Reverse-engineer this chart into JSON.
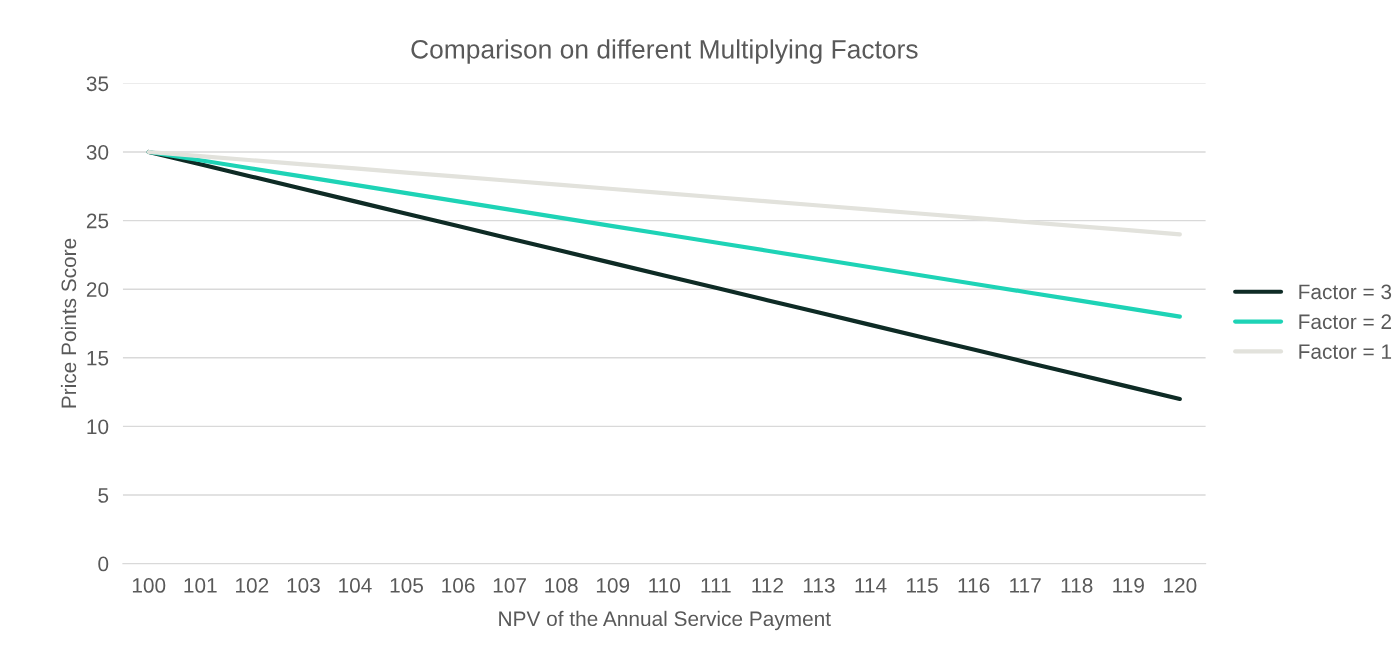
{
  "chart_data": {
    "type": "line",
    "title": "Comparison on different Multiplying Factors",
    "xlabel": "NPV of the Annual Service Payment",
    "ylabel": "Price Points Score",
    "categories": [
      "100",
      "101",
      "102",
      "103",
      "104",
      "105",
      "106",
      "107",
      "108",
      "109",
      "110",
      "111",
      "112",
      "113",
      "114",
      "115",
      "116",
      "117",
      "118",
      "119",
      "120"
    ],
    "series": [
      {
        "name": "Factor = 3",
        "color": "#0e2b25",
        "values": [
          30,
          29.1,
          28.2,
          27.3,
          26.4,
          25.5,
          24.6,
          23.7,
          22.8,
          21.9,
          21,
          20.1,
          19.2,
          18.3,
          17.4,
          16.5,
          15.6,
          14.7,
          13.8,
          12.9,
          12
        ]
      },
      {
        "name": "Factor = 2",
        "color": "#1ed3b6",
        "values": [
          30,
          29.4,
          28.8,
          28.2,
          27.6,
          27,
          26.4,
          25.8,
          25.2,
          24.6,
          24,
          23.4,
          22.8,
          22.2,
          21.6,
          21,
          20.4,
          19.8,
          19.2,
          18.6,
          18
        ]
      },
      {
        "name": "Factor = 1",
        "color": "#e2e2dc",
        "values": [
          30,
          29.7,
          29.4,
          29.1,
          28.8,
          28.5,
          28.2,
          27.9,
          27.6,
          27.3,
          27,
          26.7,
          26.4,
          26.1,
          25.8,
          25.5,
          25.2,
          24.9,
          24.6,
          24.3,
          24
        ]
      }
    ],
    "ylim": [
      0,
      35
    ],
    "yticks": [
      0,
      5,
      10,
      15,
      20,
      25,
      30,
      35
    ],
    "grid": "y",
    "legend": "right",
    "marker": "none",
    "line_style": "solid"
  }
}
